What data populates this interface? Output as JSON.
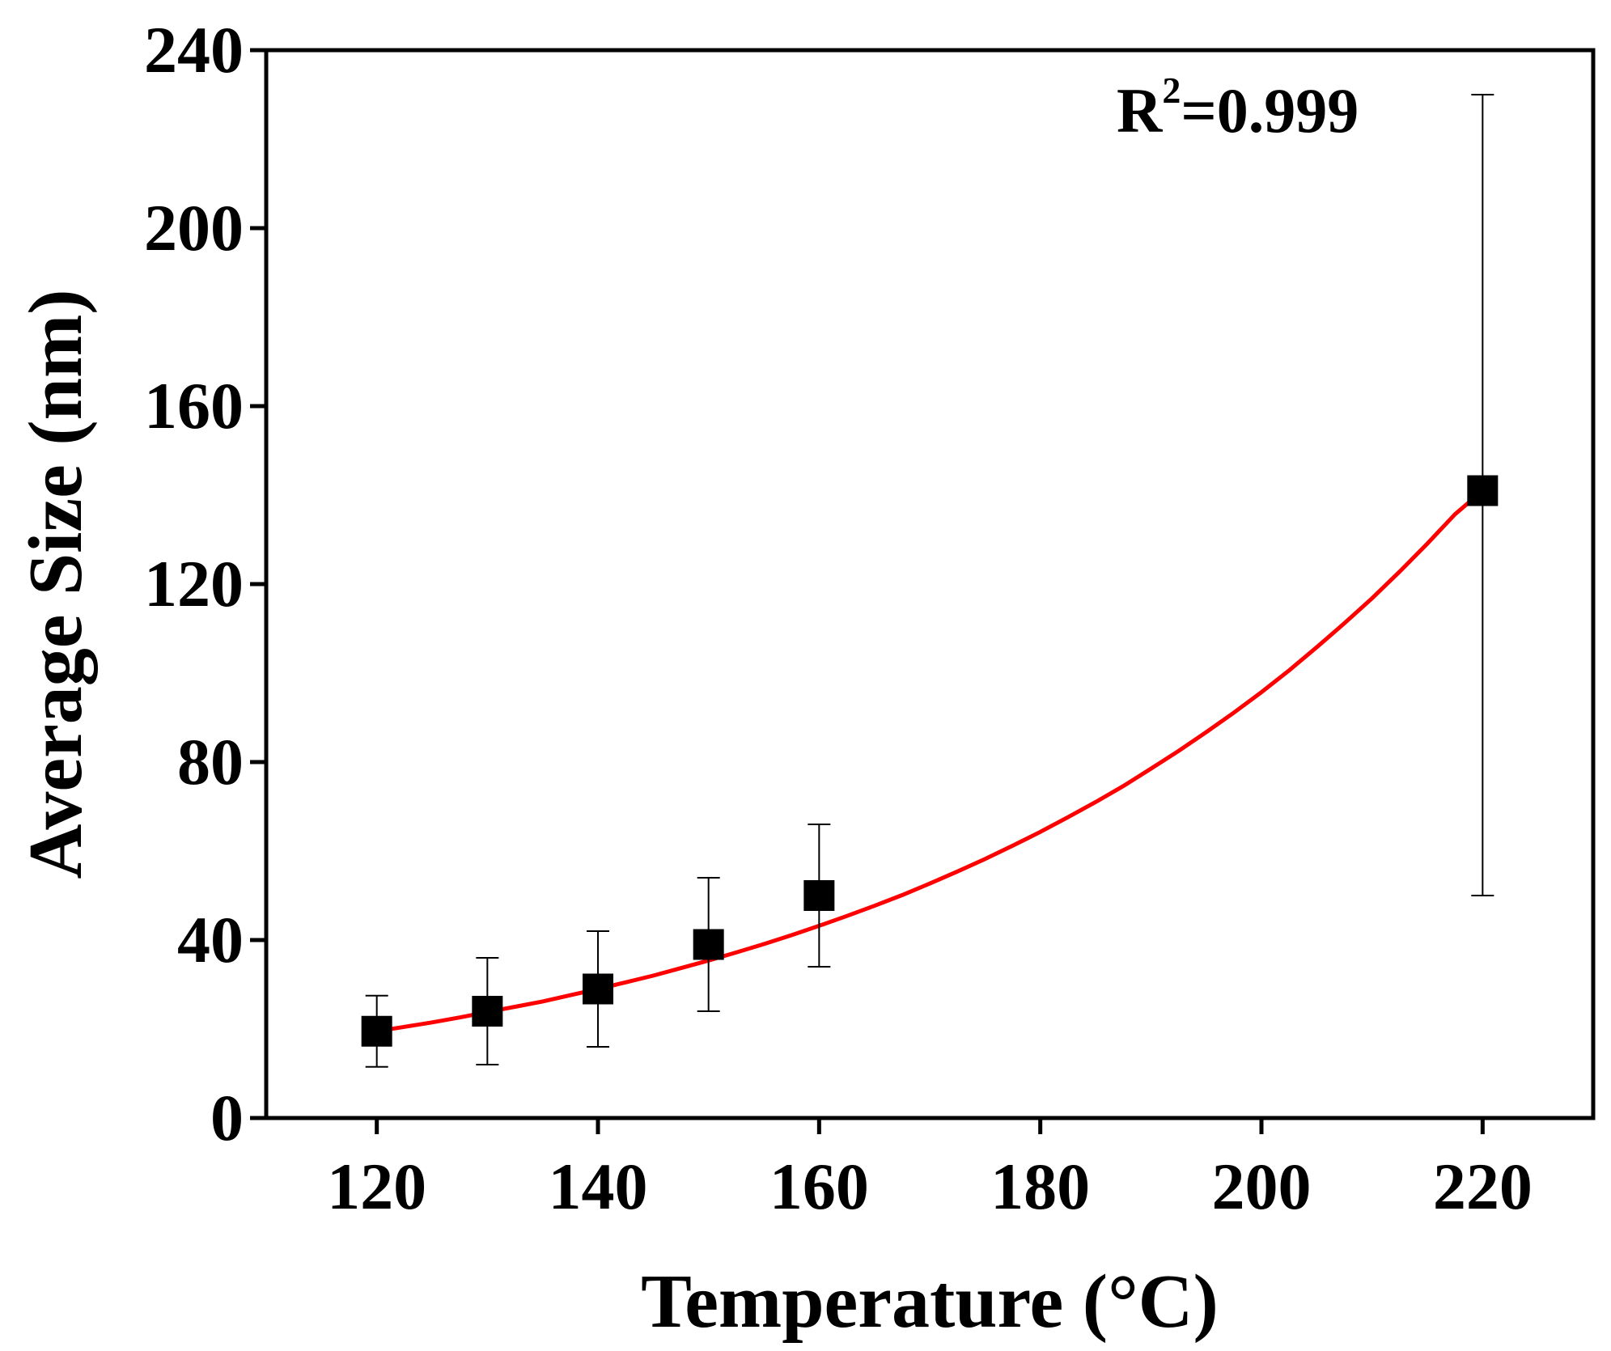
{
  "chart_data": {
    "type": "scatter",
    "title": "",
    "xlabel": "Temperature (°C)",
    "ylabel": "Average Size (nm)",
    "xlim": [
      110,
      230
    ],
    "ylim": [
      0,
      240
    ],
    "xticks": [
      120,
      140,
      160,
      180,
      200,
      220
    ],
    "yticks": [
      0,
      40,
      80,
      120,
      160,
      200,
      240
    ],
    "grid": false,
    "series": [
      {
        "name": "Average Size",
        "marker": "square",
        "color": "#000000",
        "x": [
          120,
          130,
          140,
          150,
          160,
          220
        ],
        "y": [
          19.5,
          24,
          29,
          39,
          50,
          141
        ],
        "error_low": [
          11.5,
          12,
          16,
          24,
          34,
          50
        ],
        "error_high": [
          27.5,
          36,
          42,
          54,
          66,
          230
        ]
      },
      {
        "name": "Fit",
        "type": "line",
        "color": "#ff0000",
        "x": [
          120,
          122.5,
          125,
          127.5,
          130,
          132.5,
          135,
          137.5,
          140,
          142.5,
          145,
          147.5,
          150,
          152.5,
          155,
          157.5,
          160,
          162.5,
          165,
          167.5,
          170,
          172.5,
          175,
          177.5,
          180,
          182.5,
          185,
          187.5,
          190,
          192.5,
          195,
          197.5,
          200,
          202.5,
          205,
          207.5,
          210,
          212.5,
          215,
          217.5,
          220
        ],
        "y": [
          19.5,
          20.5,
          21.5,
          22.6,
          23.8,
          25.0,
          26.2,
          27.6,
          29.0,
          30.5,
          32.0,
          33.7,
          35.4,
          37.2,
          39.1,
          41.1,
          43.2,
          45.4,
          47.7,
          50.1,
          52.7,
          55.4,
          58.2,
          61.2,
          64.3,
          67.6,
          71.0,
          74.6,
          78.5,
          82.5,
          86.7,
          91.1,
          95.7,
          100.6,
          105.8,
          111.2,
          116.8,
          122.8,
          129.1,
          135.7,
          141.0
        ]
      }
    ],
    "annotations": [
      {
        "text": "R",
        "superscript": "2",
        "suffix": "=0.999"
      }
    ]
  }
}
